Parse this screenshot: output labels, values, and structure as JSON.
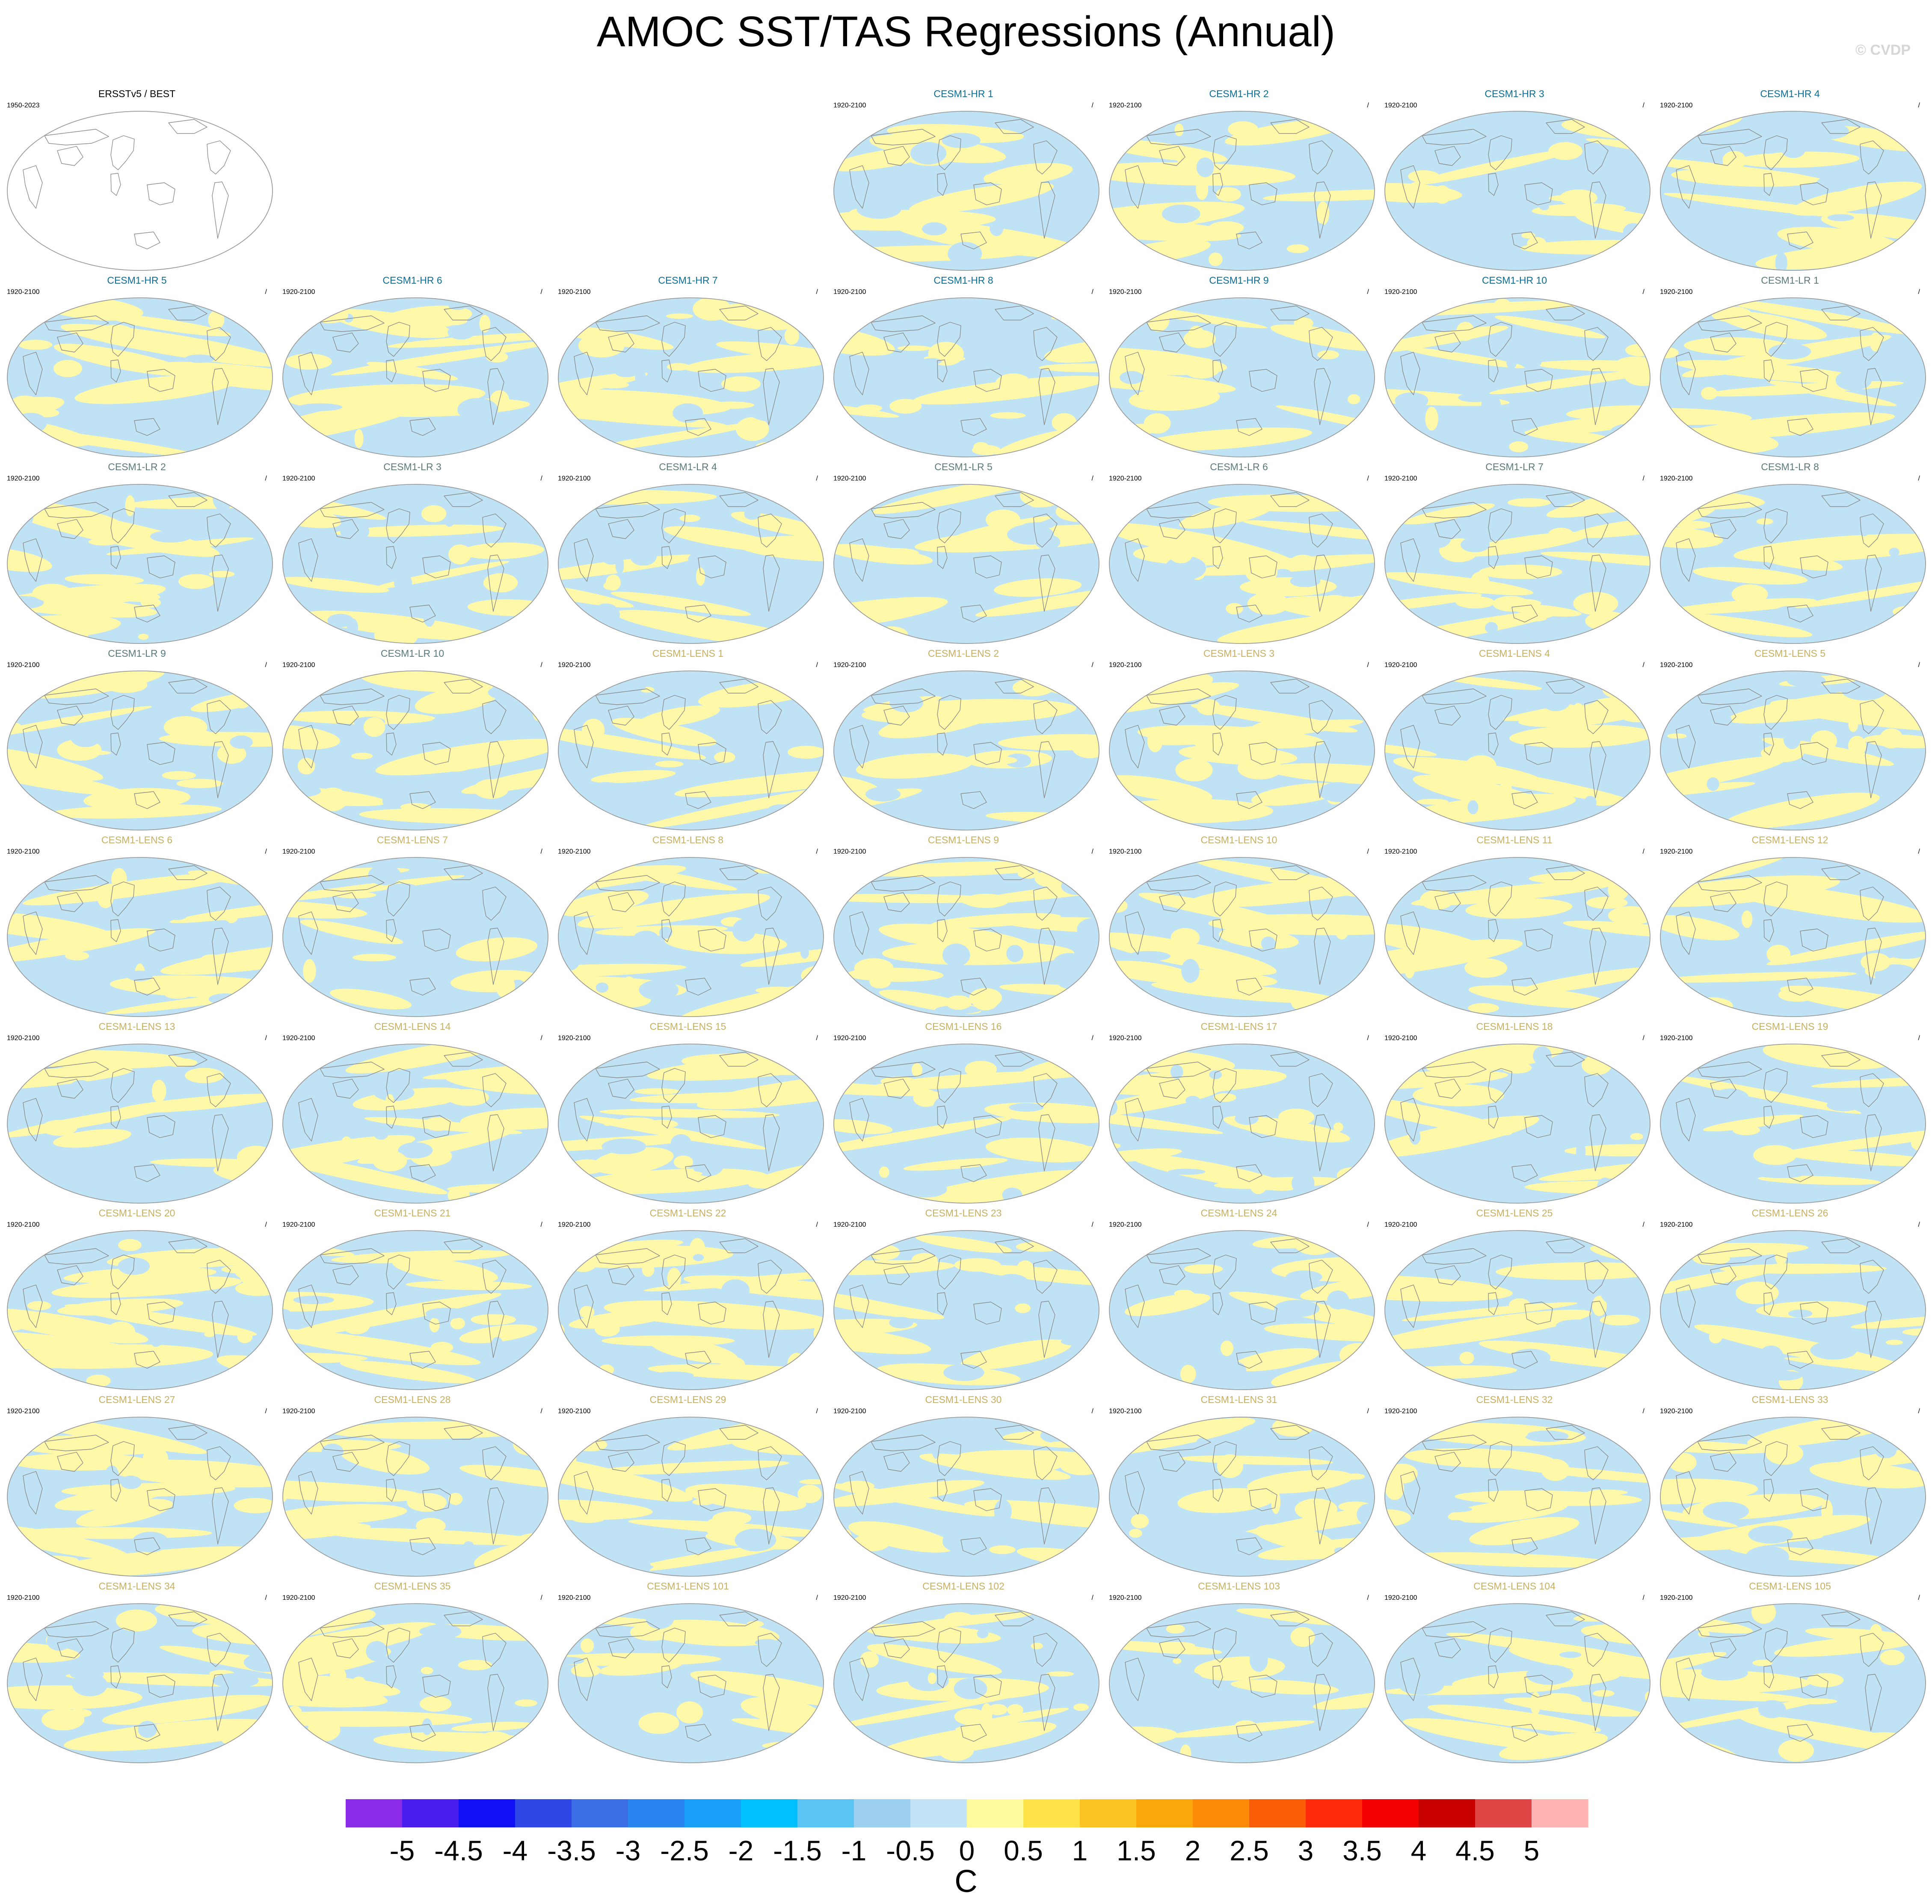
{
  "figure": {
    "title": "AMOC SST/TAS Regressions (Annual)",
    "credit": "© CVDP"
  },
  "map_colors": {
    "blank": "#ffffff",
    "negative": "#bfe3f4",
    "positive": "#fff8a8",
    "coast": "#8a8a8a",
    "border": "#9a9a9a"
  },
  "title_colors": {
    "obs": "#000000",
    "hr": "#0b6e99",
    "lr": "#5a7a7a",
    "lens": "#c8b060"
  },
  "panels": [
    {
      "title": "ERSSTv5 / BEST",
      "years": "1950-2023",
      "slash": "",
      "group": "obs",
      "filled": false,
      "row": 0,
      "col": 0
    },
    {
      "title": "CESM1-HR 1",
      "years": "1920-2100",
      "slash": "/",
      "group": "hr",
      "filled": true,
      "row": 0,
      "col": 3
    },
    {
      "title": "CESM1-HR 2",
      "years": "1920-2100",
      "slash": "/",
      "group": "hr",
      "filled": true,
      "row": 0,
      "col": 4
    },
    {
      "title": "CESM1-HR 3",
      "years": "1920-2100",
      "slash": "/",
      "group": "hr",
      "filled": true,
      "row": 0,
      "col": 5
    },
    {
      "title": "CESM1-HR 4",
      "years": "1920-2100",
      "slash": "/",
      "group": "hr",
      "filled": true,
      "row": 0,
      "col": 6
    },
    {
      "title": "CESM1-HR 5",
      "years": "1920-2100",
      "slash": "/",
      "group": "hr",
      "filled": true,
      "row": 1,
      "col": 0
    },
    {
      "title": "CESM1-HR 6",
      "years": "1920-2100",
      "slash": "/",
      "group": "hr",
      "filled": true,
      "row": 1,
      "col": 1
    },
    {
      "title": "CESM1-HR 7",
      "years": "1920-2100",
      "slash": "/",
      "group": "hr",
      "filled": true,
      "row": 1,
      "col": 2
    },
    {
      "title": "CESM1-HR 8",
      "years": "1920-2100",
      "slash": "/",
      "group": "hr",
      "filled": true,
      "row": 1,
      "col": 3
    },
    {
      "title": "CESM1-HR 9",
      "years": "1920-2100",
      "slash": "/",
      "group": "hr",
      "filled": true,
      "row": 1,
      "col": 4
    },
    {
      "title": "CESM1-HR 10",
      "years": "1920-2100",
      "slash": "/",
      "group": "hr",
      "filled": true,
      "row": 1,
      "col": 5
    },
    {
      "title": "CESM1-LR 1",
      "years": "1920-2100",
      "slash": "/",
      "group": "lr",
      "filled": true,
      "row": 1,
      "col": 6
    },
    {
      "title": "CESM1-LR 2",
      "years": "1920-2100",
      "slash": "/",
      "group": "lr",
      "filled": true,
      "row": 2,
      "col": 0
    },
    {
      "title": "CESM1-LR 3",
      "years": "1920-2100",
      "slash": "/",
      "group": "lr",
      "filled": true,
      "row": 2,
      "col": 1
    },
    {
      "title": "CESM1-LR 4",
      "years": "1920-2100",
      "slash": "/",
      "group": "lr",
      "filled": true,
      "row": 2,
      "col": 2
    },
    {
      "title": "CESM1-LR 5",
      "years": "1920-2100",
      "slash": "/",
      "group": "lr",
      "filled": true,
      "row": 2,
      "col": 3
    },
    {
      "title": "CESM1-LR 6",
      "years": "1920-2100",
      "slash": "/",
      "group": "lr",
      "filled": true,
      "row": 2,
      "col": 4
    },
    {
      "title": "CESM1-LR 7",
      "years": "1920-2100",
      "slash": "/",
      "group": "lr",
      "filled": true,
      "row": 2,
      "col": 5
    },
    {
      "title": "CESM1-LR 8",
      "years": "1920-2100",
      "slash": "/",
      "group": "lr",
      "filled": true,
      "row": 2,
      "col": 6
    },
    {
      "title": "CESM1-LR 9",
      "years": "1920-2100",
      "slash": "/",
      "group": "lr",
      "filled": true,
      "row": 3,
      "col": 0
    },
    {
      "title": "CESM1-LR 10",
      "years": "1920-2100",
      "slash": "/",
      "group": "lr",
      "filled": true,
      "row": 3,
      "col": 1
    },
    {
      "title": "CESM1-LENS 1",
      "years": "1920-2100",
      "slash": "/",
      "group": "lens",
      "filled": true,
      "row": 3,
      "col": 2
    },
    {
      "title": "CESM1-LENS 2",
      "years": "1920-2100",
      "slash": "/",
      "group": "lens",
      "filled": true,
      "row": 3,
      "col": 3
    },
    {
      "title": "CESM1-LENS 3",
      "years": "1920-2100",
      "slash": "/",
      "group": "lens",
      "filled": true,
      "row": 3,
      "col": 4
    },
    {
      "title": "CESM1-LENS 4",
      "years": "1920-2100",
      "slash": "/",
      "group": "lens",
      "filled": true,
      "row": 3,
      "col": 5
    },
    {
      "title": "CESM1-LENS 5",
      "years": "1920-2100",
      "slash": "/",
      "group": "lens",
      "filled": true,
      "row": 3,
      "col": 6
    },
    {
      "title": "CESM1-LENS 6",
      "years": "1920-2100",
      "slash": "/",
      "group": "lens",
      "filled": true,
      "row": 4,
      "col": 0
    },
    {
      "title": "CESM1-LENS 7",
      "years": "1920-2100",
      "slash": "/",
      "group": "lens",
      "filled": true,
      "row": 4,
      "col": 1
    },
    {
      "title": "CESM1-LENS 8",
      "years": "1920-2100",
      "slash": "/",
      "group": "lens",
      "filled": true,
      "row": 4,
      "col": 2
    },
    {
      "title": "CESM1-LENS 9",
      "years": "1920-2100",
      "slash": "/",
      "group": "lens",
      "filled": true,
      "row": 4,
      "col": 3
    },
    {
      "title": "CESM1-LENS 10",
      "years": "1920-2100",
      "slash": "/",
      "group": "lens",
      "filled": true,
      "row": 4,
      "col": 4
    },
    {
      "title": "CESM1-LENS 11",
      "years": "1920-2100",
      "slash": "/",
      "group": "lens",
      "filled": true,
      "row": 4,
      "col": 5
    },
    {
      "title": "CESM1-LENS 12",
      "years": "1920-2100",
      "slash": "/",
      "group": "lens",
      "filled": true,
      "row": 4,
      "col": 6
    },
    {
      "title": "CESM1-LENS 13",
      "years": "1920-2100",
      "slash": "/",
      "group": "lens",
      "filled": true,
      "row": 5,
      "col": 0
    },
    {
      "title": "CESM1-LENS 14",
      "years": "1920-2100",
      "slash": "/",
      "group": "lens",
      "filled": true,
      "row": 5,
      "col": 1
    },
    {
      "title": "CESM1-LENS 15",
      "years": "1920-2100",
      "slash": "/",
      "group": "lens",
      "filled": true,
      "row": 5,
      "col": 2
    },
    {
      "title": "CESM1-LENS 16",
      "years": "1920-2100",
      "slash": "/",
      "group": "lens",
      "filled": true,
      "row": 5,
      "col": 3
    },
    {
      "title": "CESM1-LENS 17",
      "years": "1920-2100",
      "slash": "/",
      "group": "lens",
      "filled": true,
      "row": 5,
      "col": 4
    },
    {
      "title": "CESM1-LENS 18",
      "years": "1920-2100",
      "slash": "/",
      "group": "lens",
      "filled": true,
      "row": 5,
      "col": 5
    },
    {
      "title": "CESM1-LENS 19",
      "years": "1920-2100",
      "slash": "/",
      "group": "lens",
      "filled": true,
      "row": 5,
      "col": 6
    },
    {
      "title": "CESM1-LENS 20",
      "years": "1920-2100",
      "slash": "/",
      "group": "lens",
      "filled": true,
      "row": 6,
      "col": 0
    },
    {
      "title": "CESM1-LENS 21",
      "years": "1920-2100",
      "slash": "/",
      "group": "lens",
      "filled": true,
      "row": 6,
      "col": 1
    },
    {
      "title": "CESM1-LENS 22",
      "years": "1920-2100",
      "slash": "/",
      "group": "lens",
      "filled": true,
      "row": 6,
      "col": 2
    },
    {
      "title": "CESM1-LENS 23",
      "years": "1920-2100",
      "slash": "/",
      "group": "lens",
      "filled": true,
      "row": 6,
      "col": 3
    },
    {
      "title": "CESM1-LENS 24",
      "years": "1920-2100",
      "slash": "/",
      "group": "lens",
      "filled": true,
      "row": 6,
      "col": 4
    },
    {
      "title": "CESM1-LENS 25",
      "years": "1920-2100",
      "slash": "/",
      "group": "lens",
      "filled": true,
      "row": 6,
      "col": 5
    },
    {
      "title": "CESM1-LENS 26",
      "years": "1920-2100",
      "slash": "/",
      "group": "lens",
      "filled": true,
      "row": 6,
      "col": 6
    },
    {
      "title": "CESM1-LENS 27",
      "years": "1920-2100",
      "slash": "/",
      "group": "lens",
      "filled": true,
      "row": 7,
      "col": 0
    },
    {
      "title": "CESM1-LENS 28",
      "years": "1920-2100",
      "slash": "/",
      "group": "lens",
      "filled": true,
      "row": 7,
      "col": 1
    },
    {
      "title": "CESM1-LENS 29",
      "years": "1920-2100",
      "slash": "/",
      "group": "lens",
      "filled": true,
      "row": 7,
      "col": 2
    },
    {
      "title": "CESM1-LENS 30",
      "years": "1920-2100",
      "slash": "/",
      "group": "lens",
      "filled": true,
      "row": 7,
      "col": 3
    },
    {
      "title": "CESM1-LENS 31",
      "years": "1920-2100",
      "slash": "/",
      "group": "lens",
      "filled": true,
      "row": 7,
      "col": 4
    },
    {
      "title": "CESM1-LENS 32",
      "years": "1920-2100",
      "slash": "/",
      "group": "lens",
      "filled": true,
      "row": 7,
      "col": 5
    },
    {
      "title": "CESM1-LENS 33",
      "years": "1920-2100",
      "slash": "/",
      "group": "lens",
      "filled": true,
      "row": 7,
      "col": 6
    },
    {
      "title": "CESM1-LENS 34",
      "years": "1920-2100",
      "slash": "/",
      "group": "lens",
      "filled": true,
      "row": 8,
      "col": 0
    },
    {
      "title": "CESM1-LENS 35",
      "years": "1920-2100",
      "slash": "/",
      "group": "lens",
      "filled": true,
      "row": 8,
      "col": 1
    },
    {
      "title": "CESM1-LENS 101",
      "years": "1920-2100",
      "slash": "/",
      "group": "lens",
      "filled": true,
      "row": 8,
      "col": 2
    },
    {
      "title": "CESM1-LENS 102",
      "years": "1920-2100",
      "slash": "/",
      "group": "lens",
      "filled": true,
      "row": 8,
      "col": 3
    },
    {
      "title": "CESM1-LENS 103",
      "years": "1920-2100",
      "slash": "/",
      "group": "lens",
      "filled": true,
      "row": 8,
      "col": 4
    },
    {
      "title": "CESM1-LENS 104",
      "years": "1920-2100",
      "slash": "/",
      "group": "lens",
      "filled": true,
      "row": 8,
      "col": 5
    },
    {
      "title": "CESM1-LENS 105",
      "years": "1920-2100",
      "slash": "/",
      "group": "lens",
      "filled": true,
      "row": 8,
      "col": 6
    }
  ],
  "colorbar": {
    "units": "C",
    "labels": [
      "-5",
      "-4.5",
      "-4",
      "-3.5",
      "-3",
      "-2.5",
      "-2",
      "-1.5",
      "-1",
      "-0.5",
      "0",
      "0.5",
      "1",
      "1.5",
      "2",
      "2.5",
      "3",
      "3.5",
      "4",
      "4.5",
      "5"
    ],
    "colors": [
      "#8a2be8",
      "#4b1ef0",
      "#1010f5",
      "#2f47e6",
      "#3c6ee6",
      "#2a85f0",
      "#1aa0f8",
      "#00c0ff",
      "#5ac4f2",
      "#9ccff0",
      "#c2e4f6",
      "#fffa9e",
      "#ffe24a",
      "#fcc422",
      "#faa70a",
      "#fb8a07",
      "#fb5e08",
      "#ff2a0a",
      "#f20000",
      "#c80000",
      "#df4545",
      "#ffb3b3"
    ]
  }
}
